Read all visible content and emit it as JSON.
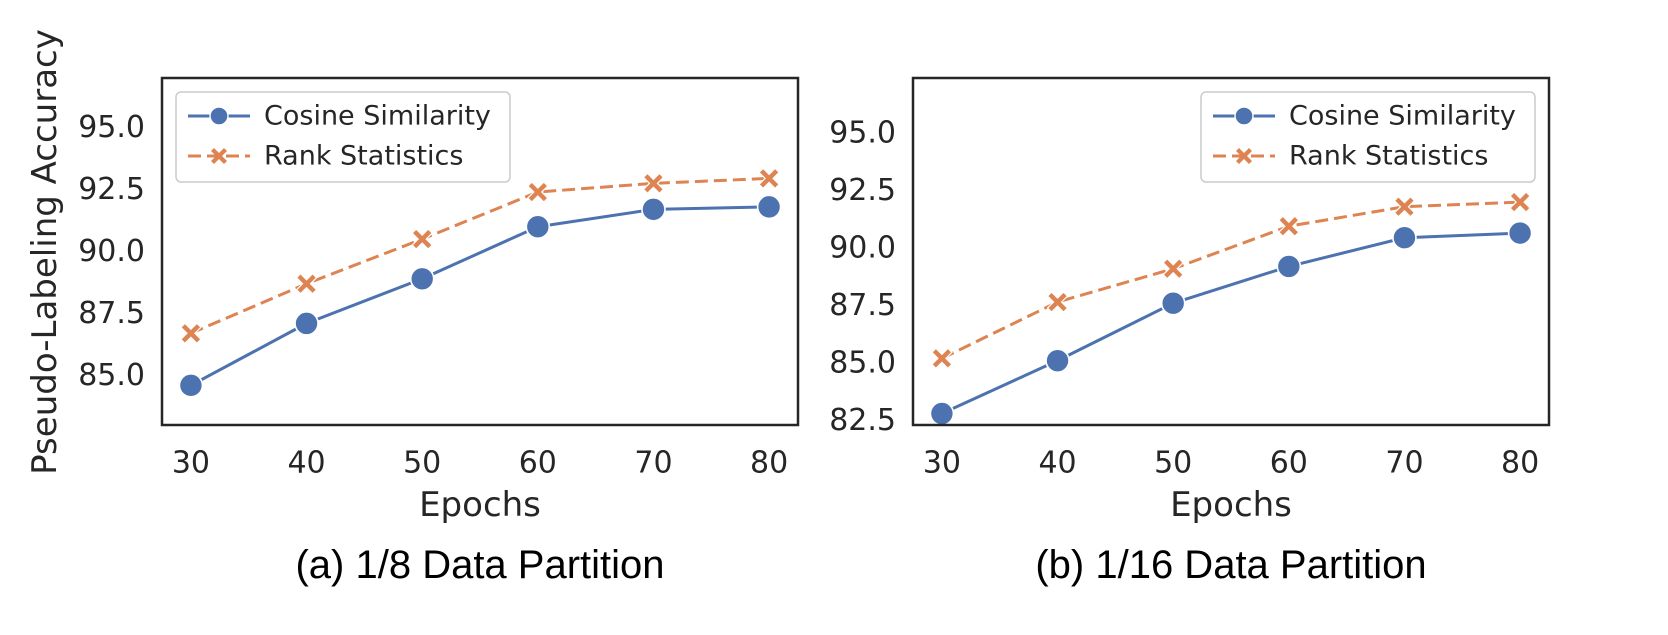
{
  "colors": {
    "cosine": "#4C72B0",
    "rank": "#DD8452",
    "frame": "#262626"
  },
  "chart_data": [
    {
      "type": "line",
      "caption": "(a) 1/8 Data Partition",
      "xlabel": "Epochs",
      "ylabel": "Pseudo-Labeling Accuracy",
      "x": [
        30,
        40,
        50,
        60,
        70,
        80
      ],
      "x_tick_labels": [
        "30",
        "40",
        "50",
        "60",
        "70",
        "80"
      ],
      "xlim": [
        27.5,
        82.5
      ],
      "y_ticks": [
        85.0,
        87.5,
        90.0,
        92.5,
        95.0
      ],
      "y_tick_labels": [
        "85.0",
        "87.5",
        "90.0",
        "92.5",
        "95.0"
      ],
      "ylim": [
        83.0,
        97.0
      ],
      "legend_position": "upper-left",
      "series": [
        {
          "name": "Cosine Similarity",
          "style": "solid",
          "marker": "circle",
          "values": [
            84.6,
            87.1,
            88.9,
            91.0,
            91.7,
            91.8
          ]
        },
        {
          "name": "Rank Statistics",
          "style": "dashed",
          "marker": "x",
          "values": [
            86.7,
            88.7,
            90.5,
            92.4,
            92.75,
            92.95
          ]
        }
      ]
    },
    {
      "type": "line",
      "caption": "(b) 1/16 Data Partition",
      "xlabel": "Epochs",
      "ylabel": "",
      "x": [
        30,
        40,
        50,
        60,
        70,
        80
      ],
      "x_tick_labels": [
        "30",
        "40",
        "50",
        "60",
        "70",
        "80"
      ],
      "xlim": [
        27.5,
        82.5
      ],
      "y_ticks": [
        82.5,
        85.0,
        87.5,
        90.0,
        92.5,
        95.0
      ],
      "y_tick_labels": [
        "82.5",
        "85.0",
        "87.5",
        "90.0",
        "92.5",
        "95.0"
      ],
      "ylim": [
        82.3,
        97.4
      ],
      "legend_position": "upper-right",
      "series": [
        {
          "name": "Cosine Similarity",
          "style": "solid",
          "marker": "circle",
          "values": [
            82.8,
            85.1,
            87.6,
            89.2,
            90.45,
            90.65
          ]
        },
        {
          "name": "Rank Statistics",
          "style": "dashed",
          "marker": "x",
          "values": [
            85.2,
            87.65,
            89.1,
            90.95,
            91.8,
            92.0
          ]
        }
      ]
    }
  ]
}
